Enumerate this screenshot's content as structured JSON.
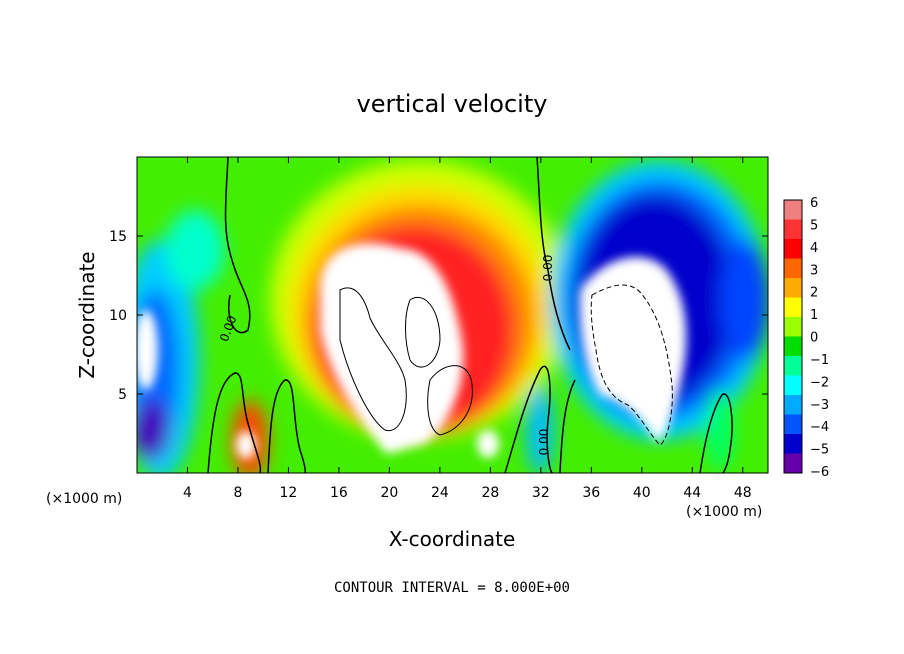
{
  "chart_data": {
    "type": "heatmap",
    "title": "vertical velocity",
    "xlabel": "X-coordinate",
    "ylabel": "Z-coordinate",
    "x_unit_left": "(×1000 m)",
    "x_unit_right": "(×1000 m)",
    "xlim": [
      0,
      50
    ],
    "ylim": [
      0,
      20
    ],
    "x_ticks": [
      4,
      8,
      12,
      16,
      20,
      24,
      28,
      32,
      36,
      40,
      44,
      48
    ],
    "y_ticks": [
      5,
      10,
      15
    ],
    "colorbar": {
      "ticks": [
        6,
        5,
        4,
        3,
        2,
        1,
        0,
        -1,
        -2,
        -3,
        -4,
        -5,
        -6
      ],
      "tick_labels": [
        "6",
        "5",
        "4",
        "3",
        "2",
        "1",
        "0",
        "−1",
        "−2",
        "−3",
        "−4",
        "−5",
        "−6"
      ],
      "colors": [
        "#f08080",
        "#ff3333",
        "#ff0000",
        "#ff6600",
        "#ffaa00",
        "#ffff00",
        "#99ff00",
        "#00dd00",
        "#00ff99",
        "#00ffff",
        "#00aaff",
        "#0055ff",
        "#0000cc",
        "#6600aa"
      ],
      "range": [
        -6,
        6
      ]
    },
    "contour_interval": "CONTOUR INTERVAL = 8.000E+00",
    "contour_labels": [
      "0.00",
      "0.00",
      "0.00"
    ],
    "features": [
      {
        "name": "updraft",
        "x_center": 22,
        "z_center": 10,
        "value": "above 6"
      },
      {
        "name": "downdraft-east",
        "x_center": 40,
        "z_center": 9,
        "value": "below -6"
      },
      {
        "name": "downdraft-west",
        "x_center": 1,
        "z_center": 8,
        "value": "below -6"
      }
    ]
  }
}
